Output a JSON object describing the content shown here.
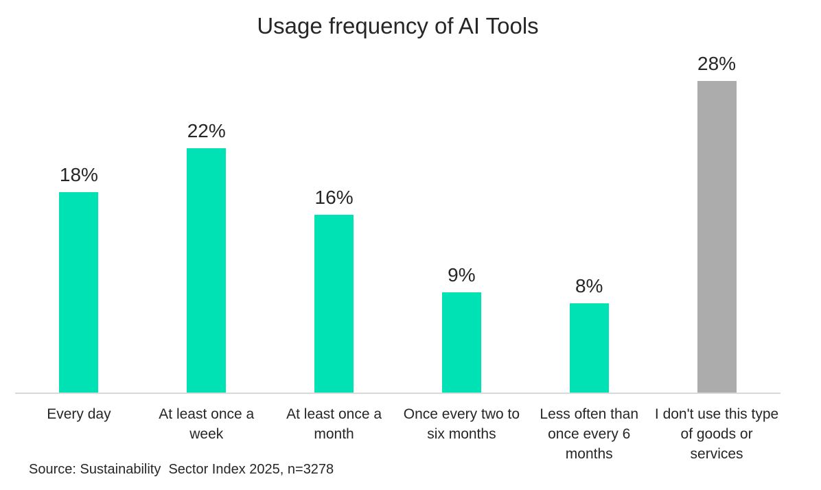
{
  "chart_data": {
    "type": "bar",
    "title": "Usage frequency of AI Tools",
    "categories": [
      "Every day",
      "At least once a week",
      "At least once a month",
      "Once every two to six months",
      "Less often than once every 6 months",
      "I don't use this type of goods or services"
    ],
    "values": [
      18,
      22,
      16,
      9,
      8,
      28
    ],
    "value_labels": [
      "18%",
      "22%",
      "16%",
      "9%",
      "8%",
      "28%"
    ],
    "unit": "%",
    "ylim": [
      0,
      30
    ],
    "grid": false,
    "legend_position": "none",
    "bar_colors": [
      "#00E2B3",
      "#00E2B3",
      "#00E2B3",
      "#00E2B3",
      "#00E2B3",
      "#ACACAC"
    ],
    "xlabel": "",
    "ylabel": ""
  },
  "source_note": "Source: Sustainability  Sector Index 2025, n=3278",
  "colors": {
    "bar_teal": "#00E2B3",
    "bar_gray": "#ACACAC",
    "axis_line": "#D9D9D9",
    "text": "#262626",
    "background": "#FFFFFF"
  }
}
